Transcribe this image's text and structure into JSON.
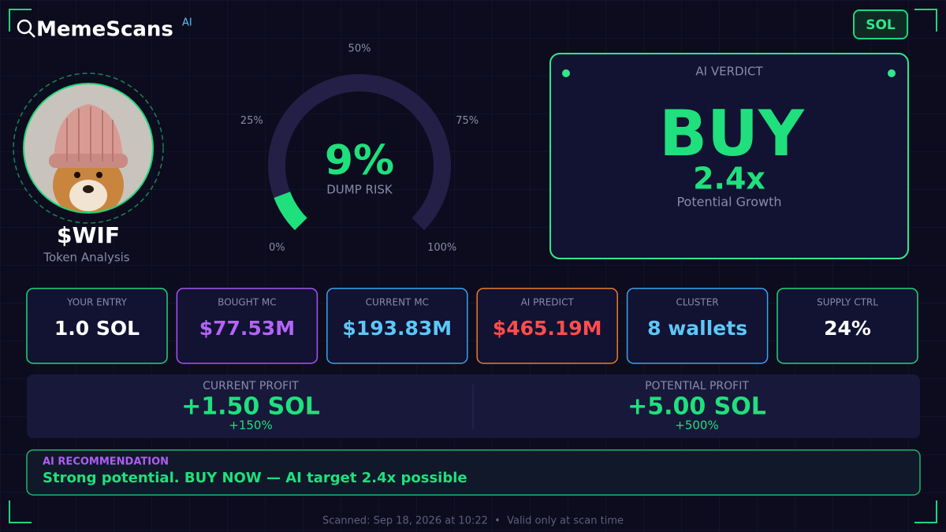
{
  "header": {
    "brand": "MemeScans",
    "brand_badge": "AI",
    "chain": "SOL"
  },
  "token": {
    "symbol": "$WIF",
    "subtitle": "Token Analysis"
  },
  "gauge": {
    "value": 9,
    "label": "9%",
    "caption": "DUMP RISK",
    "ticks": [
      {
        "value": 0,
        "label": "0%"
      },
      {
        "value": 25,
        "label": "25%"
      },
      {
        "value": 50,
        "label": "50%"
      },
      {
        "value": 75,
        "label": "75%"
      },
      {
        "value": 100,
        "label": "100%"
      }
    ]
  },
  "verdict": {
    "heading": "AI VERDICT",
    "call": "BUY",
    "multiplier": "2.4x",
    "caption": "Potential Growth"
  },
  "stats": [
    {
      "label": "YOUR ENTRY",
      "value": "1.0 SOL"
    },
    {
      "label": "BOUGHT MC",
      "value": "$77.53M"
    },
    {
      "label": "CURRENT MC",
      "value": "$193.83M"
    },
    {
      "label": "AI PREDICT",
      "value": "$465.19M"
    },
    {
      "label": "CLUSTER",
      "value": "8 wallets"
    },
    {
      "label": "SUPPLY CTRL",
      "value": "24%"
    }
  ],
  "profits": [
    {
      "label": "CURRENT PROFIT",
      "value": "+1.50 SOL",
      "percent": "+150%"
    },
    {
      "label": "POTENTIAL PROFIT",
      "value": "+5.00 SOL",
      "percent": "+500%"
    }
  ],
  "recommendation": {
    "heading": "AI RECOMMENDATION",
    "text": "Strong potential. BUY NOW — AI target 2.4x possible"
  },
  "footer": "Scanned: Sep 18, 2026 at 10:22  •  Valid only at scan time"
}
